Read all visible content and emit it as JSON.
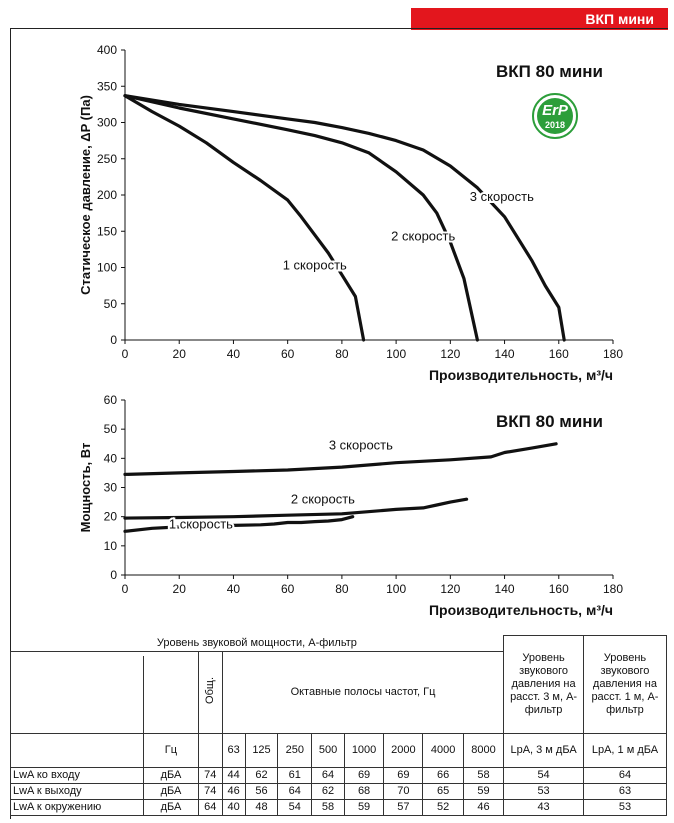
{
  "banner": {
    "title": "ВКП мини"
  },
  "chart_data": [
    {
      "type": "line",
      "title": "ВКП 80 мини",
      "xlabel": "Производительность, м³/ч",
      "ylabel": "Статическое давление, ΔP (Па)",
      "xlim": [
        0,
        180
      ],
      "ylim": [
        0,
        400
      ],
      "xticks": [
        "0",
        "20",
        "40",
        "60",
        "80",
        "100",
        "120",
        "140",
        "160",
        "180"
      ],
      "yticks": [
        "0",
        "50",
        "100",
        "150",
        "200",
        "250",
        "300",
        "350",
        "400"
      ],
      "grid": false,
      "badge": {
        "text": "ErP",
        "year": "2018"
      },
      "series": [
        {
          "name": "1 скорость",
          "x": [
            0,
            10,
            20,
            30,
            40,
            50,
            60,
            65,
            70,
            75,
            80,
            85,
            88
          ],
          "y": [
            337,
            315,
            295,
            272,
            245,
            220,
            193,
            170,
            145,
            120,
            90,
            60,
            0
          ]
        },
        {
          "name": "2 скорость",
          "x": [
            0,
            20,
            40,
            60,
            70,
            80,
            90,
            100,
            110,
            115,
            120,
            125,
            130
          ],
          "y": [
            337,
            320,
            305,
            290,
            282,
            272,
            258,
            232,
            200,
            175,
            135,
            85,
            0
          ]
        },
        {
          "name": "3 скорость",
          "x": [
            0,
            20,
            40,
            60,
            70,
            80,
            90,
            100,
            110,
            120,
            130,
            140,
            150,
            155,
            160,
            162
          ],
          "y": [
            337,
            325,
            315,
            305,
            300,
            293,
            285,
            275,
            262,
            240,
            210,
            170,
            110,
            75,
            45,
            0
          ]
        }
      ],
      "labels": [
        {
          "text": "1 скорость",
          "x": 70,
          "y": 97
        },
        {
          "text": "2 скорость",
          "x": 110,
          "y": 137
        },
        {
          "text": "3 скорость",
          "x": 139,
          "y": 192
        }
      ]
    },
    {
      "type": "line",
      "title": "ВКП 80 мини",
      "xlabel": "Производительность, м³/ч",
      "ylabel": "Мощность, Вт",
      "xlim": [
        0,
        180
      ],
      "ylim": [
        0,
        60
      ],
      "xticks": [
        "0",
        "20",
        "40",
        "60",
        "80",
        "100",
        "120",
        "140",
        "160",
        "180"
      ],
      "yticks": [
        "0",
        "10",
        "20",
        "30",
        "40",
        "50",
        "60"
      ],
      "grid": false,
      "series": [
        {
          "name": "1 скорость",
          "x": [
            0,
            10,
            20,
            30,
            40,
            50,
            55,
            60,
            65,
            70,
            75,
            80,
            84
          ],
          "y": [
            15,
            16,
            16.5,
            17,
            17,
            17.2,
            17.5,
            18,
            18,
            18.3,
            18.5,
            19,
            20
          ]
        },
        {
          "name": "2 скорость",
          "x": [
            0,
            20,
            40,
            60,
            80,
            100,
            110,
            115,
            120,
            126
          ],
          "y": [
            19.5,
            19.7,
            20,
            20.5,
            21,
            22.5,
            23,
            24,
            25,
            26
          ]
        },
        {
          "name": "3 скорость",
          "x": [
            0,
            20,
            40,
            60,
            80,
            100,
            120,
            135,
            140,
            150,
            159
          ],
          "y": [
            34.5,
            35,
            35.5,
            36,
            37,
            38.5,
            39.5,
            40.5,
            42,
            43.5,
            45
          ]
        }
      ],
      "labels": [
        {
          "text": "1 скорость",
          "x": 28,
          "y": 16
        },
        {
          "text": "2 скорость",
          "x": 73,
          "y": 24.5
        },
        {
          "text": "3 скорость",
          "x": 87,
          "y": 43
        }
      ]
    }
  ],
  "table": {
    "title": "Уровень звуковой мощности, А-фильтр",
    "total_label": "Общ.",
    "octave_label": "Октавные полосы частот, Гц",
    "pressure3_header": "Уровень звукового давления на расст. 3 м, А-фильтр",
    "pressure1_header": "Уровень звукового давления на расст. 1 м, А-фильтр",
    "hz_label": "Гц",
    "freqs": [
      "63",
      "125",
      "250",
      "500",
      "1000",
      "2000",
      "4000",
      "8000"
    ],
    "lpa3_label": "LpA, 3 м дБА",
    "lpa1_label": "LpA, 1 м дБА",
    "rows": [
      {
        "name": "LwA ко входу",
        "unit": "дБА",
        "total": "74",
        "bands": [
          "44",
          "62",
          "61",
          "64",
          "69",
          "69",
          "66",
          "58"
        ],
        "lpa3": "54",
        "lpa1": "64"
      },
      {
        "name": "LwA к выходу",
        "unit": "дБА",
        "total": "74",
        "bands": [
          "46",
          "56",
          "64",
          "62",
          "68",
          "70",
          "65",
          "59"
        ],
        "lpa3": "53",
        "lpa1": "63"
      },
      {
        "name": "LwA к окружению",
        "unit": "дБА",
        "total": "64",
        "bands": [
          "40",
          "48",
          "54",
          "58",
          "59",
          "57",
          "52",
          "46"
        ],
        "lpa3": "43",
        "lpa1": "53"
      }
    ]
  }
}
